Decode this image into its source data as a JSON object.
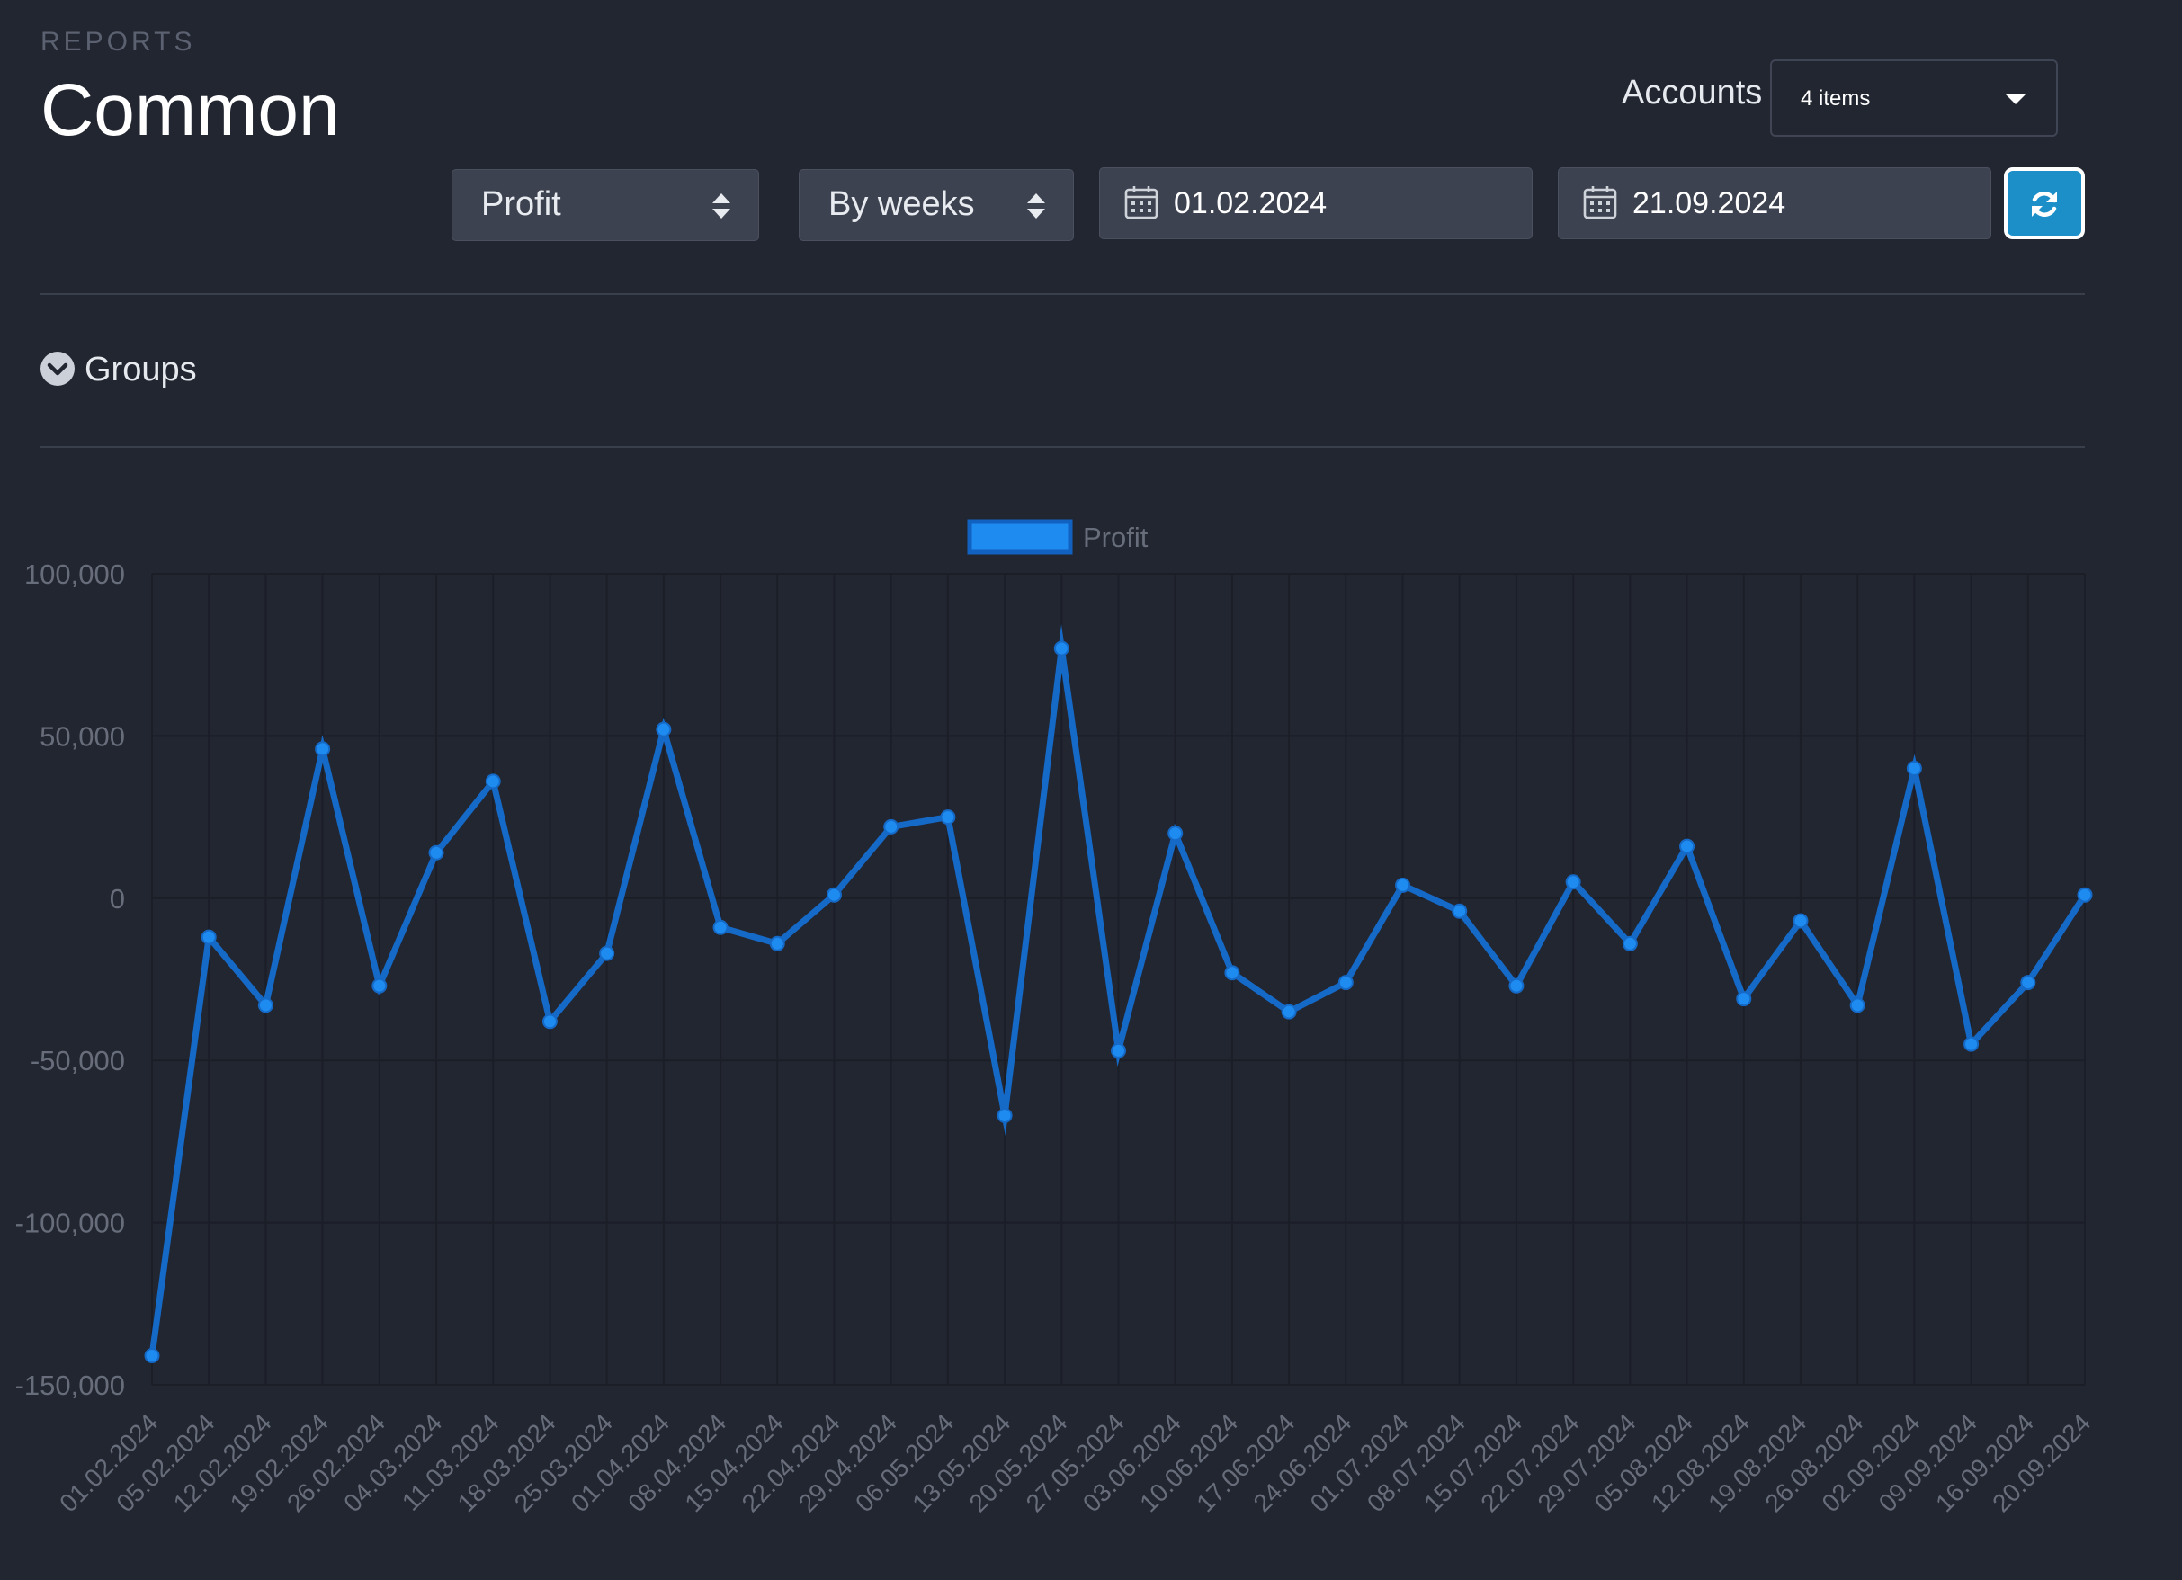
{
  "header": {
    "eyebrow": "REPORTS",
    "title": "Common"
  },
  "accounts": {
    "label": "Accounts",
    "value": "4 items"
  },
  "filters": {
    "metric": "Profit",
    "period": "By weeks",
    "date_from": "01.02.2024",
    "date_to": "21.09.2024",
    "refresh_icon": "refresh-icon"
  },
  "groups": {
    "label": "Groups",
    "icon": "chevron-down-circle-icon"
  },
  "colors": {
    "background": "#222631",
    "line": "#1569c7",
    "point": "#1e8bf0",
    "accent_button": "#1c8fc9"
  },
  "chart_data": {
    "type": "line",
    "legend": "top-center",
    "grid": true,
    "ylim": [
      -150000,
      100000
    ],
    "yticks": [
      "100,000",
      "50,000",
      "0",
      "-50,000",
      "-100,000",
      "-150,000"
    ],
    "ytick_values": [
      100000,
      50000,
      0,
      -50000,
      -100000,
      -150000
    ],
    "categories": [
      "01.02.2024",
      "05.02.2024",
      "12.02.2024",
      "19.02.2024",
      "26.02.2024",
      "04.03.2024",
      "11.03.2024",
      "18.03.2024",
      "25.03.2024",
      "01.04.2024",
      "08.04.2024",
      "15.04.2024",
      "22.04.2024",
      "29.04.2024",
      "06.05.2024",
      "13.05.2024",
      "20.05.2024",
      "27.05.2024",
      "03.06.2024",
      "10.06.2024",
      "17.06.2024",
      "24.06.2024",
      "01.07.2024",
      "08.07.2024",
      "15.07.2024",
      "22.07.2024",
      "29.07.2024",
      "05.08.2024",
      "12.08.2024",
      "19.08.2024",
      "26.08.2024",
      "02.09.2024",
      "09.09.2024",
      "16.09.2024",
      "20.09.2024"
    ],
    "series": [
      {
        "name": "Profit",
        "values": [
          -141000,
          -12000,
          -33000,
          46000,
          -27000,
          14000,
          36000,
          -38000,
          -17000,
          52000,
          -9000,
          -14000,
          1000,
          22000,
          25000,
          -67000,
          77000,
          -47000,
          20000,
          -23000,
          -35000,
          -26000,
          4000,
          -4000,
          -27000,
          5000,
          -14000,
          16000,
          -31000,
          -7000,
          -33000,
          40000,
          -45000,
          -26000,
          1000
        ]
      }
    ]
  }
}
